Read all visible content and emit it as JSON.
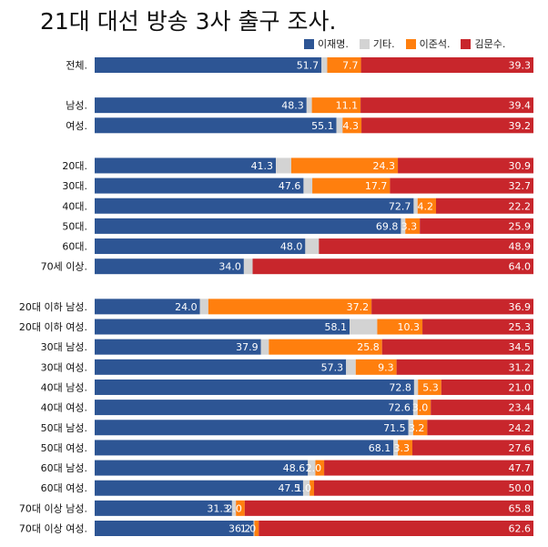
{
  "chart_data": {
    "type": "bar",
    "stacked": true,
    "orientation": "horizontal",
    "title": "21대 대선 방송 3사 출구 조사.",
    "xlim": [
      0,
      100
    ],
    "grid": false,
    "legend_position": "top-right",
    "series": [
      {
        "name": "이재명.",
        "color": "#2d5594"
      },
      {
        "name": "기타.",
        "color": "#d3d3d3"
      },
      {
        "name": "이준석.",
        "color": "#ff7f0e"
      },
      {
        "name": "김문수.",
        "color": "#c8262c"
      }
    ],
    "categories": [
      {
        "label": "전체.",
        "group": 0,
        "values": [
          51.7,
          1.3,
          7.7,
          39.3
        ],
        "labels": [
          "51.7",
          "",
          "7.7",
          "39.3"
        ]
      },
      {
        "label": "남성.",
        "group": 1,
        "values": [
          48.3,
          1.2,
          11.1,
          39.4
        ],
        "labels": [
          "48.3",
          "",
          "11.1",
          "39.4"
        ]
      },
      {
        "label": "여성.",
        "group": 1,
        "values": [
          55.1,
          1.4,
          4.3,
          39.2
        ],
        "labels": [
          "55.1",
          "",
          "4.3",
          "39.2"
        ]
      },
      {
        "label": "20대.",
        "group": 2,
        "values": [
          41.3,
          3.5,
          24.3,
          30.9
        ],
        "labels": [
          "41.3",
          "",
          "24.3",
          "30.9"
        ]
      },
      {
        "label": "30대.",
        "group": 2,
        "values": [
          47.6,
          2.0,
          17.7,
          32.7
        ],
        "labels": [
          "47.6",
          "",
          "17.7",
          "32.7"
        ]
      },
      {
        "label": "40대.",
        "group": 2,
        "values": [
          72.7,
          0.9,
          4.2,
          22.2
        ],
        "labels": [
          "72.7",
          "",
          "4.2",
          "22.2"
        ]
      },
      {
        "label": "50대.",
        "group": 2,
        "values": [
          69.8,
          1.0,
          3.3,
          25.9
        ],
        "labels": [
          "69.8",
          "",
          "3.3",
          "25.9"
        ]
      },
      {
        "label": "60대.",
        "group": 2,
        "values": [
          48.0,
          3.1,
          0,
          48.9
        ],
        "labels": [
          "48.0",
          "",
          "",
          "48.9"
        ]
      },
      {
        "label": "70세 이상.",
        "group": 2,
        "values": [
          34.0,
          2.0,
          0,
          64.0
        ],
        "labels": [
          "34.0",
          "",
          "",
          "64.0"
        ]
      },
      {
        "label": "20대 이하 남성.",
        "group": 3,
        "values": [
          24.0,
          1.9,
          37.2,
          36.9
        ],
        "labels": [
          "24.0",
          "",
          "37.2",
          "36.9"
        ]
      },
      {
        "label": "20대 이하 여성.",
        "group": 3,
        "values": [
          58.1,
          6.3,
          10.3,
          25.3
        ],
        "labels": [
          "58.1",
          "",
          "10.3",
          "25.3"
        ]
      },
      {
        "label": "30대 남성.",
        "group": 3,
        "values": [
          37.9,
          1.8,
          25.8,
          34.5
        ],
        "labels": [
          "37.9",
          "",
          "25.8",
          "34.5"
        ]
      },
      {
        "label": "30대 여성.",
        "group": 3,
        "values": [
          57.3,
          2.2,
          9.3,
          31.2
        ],
        "labels": [
          "57.3",
          "",
          "9.3",
          "31.2"
        ]
      },
      {
        "label": "40대 남성.",
        "group": 3,
        "values": [
          72.8,
          0.9,
          5.3,
          21.0
        ],
        "labels": [
          "72.8",
          "",
          "5.3",
          "21.0"
        ]
      },
      {
        "label": "40대 여성.",
        "group": 3,
        "values": [
          72.6,
          1.0,
          3.0,
          23.4
        ],
        "labels": [
          "72.6",
          "",
          "3.0",
          "23.4"
        ]
      },
      {
        "label": "50대 남성.",
        "group": 3,
        "values": [
          71.5,
          1.1,
          3.2,
          24.2
        ],
        "labels": [
          "71.5",
          "",
          "3.2",
          "24.2"
        ]
      },
      {
        "label": "50대 여성.",
        "group": 3,
        "values": [
          68.1,
          1.0,
          3.3,
          27.6
        ],
        "labels": [
          "68.1",
          "",
          "3.3",
          "27.6"
        ]
      },
      {
        "label": "60대 남성.",
        "group": 3,
        "values": [
          48.6,
          1.7,
          2.0,
          47.7
        ],
        "labels": [
          "48.6",
          "",
          "2.0",
          "47.7"
        ]
      },
      {
        "label": "60대 여성.",
        "group": 3,
        "values": [
          47.5,
          1.5,
          1.0,
          50.0
        ],
        "labels": [
          "47.5",
          "",
          "1.0",
          "50.0"
        ]
      },
      {
        "label": "70대 이상 남성.",
        "group": 3,
        "values": [
          31.3,
          0.9,
          2.0,
          65.8
        ],
        "labels": [
          "31.3",
          "",
          "2.0",
          "65.8"
        ]
      },
      {
        "label": "70대 이상 여성.",
        "group": 3,
        "values": [
          36.2,
          0.2,
          1.0,
          62.6
        ],
        "labels": [
          "36.2",
          "",
          "1.0",
          "62.6"
        ]
      }
    ]
  }
}
